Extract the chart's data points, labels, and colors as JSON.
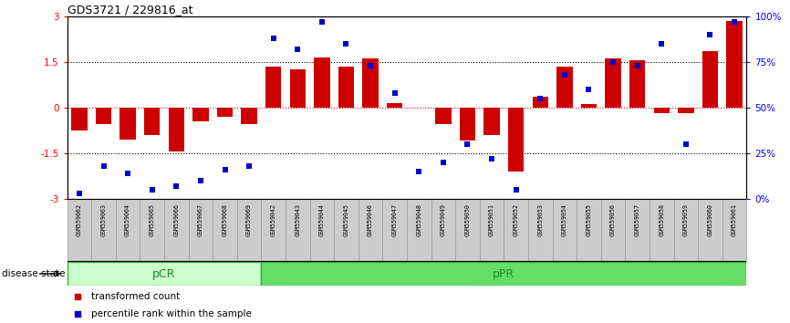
{
  "title": "GDS3721 / 229816_at",
  "samples": [
    "GSM559062",
    "GSM559063",
    "GSM559064",
    "GSM559065",
    "GSM559066",
    "GSM559067",
    "GSM559068",
    "GSM559069",
    "GSM559042",
    "GSM559043",
    "GSM559044",
    "GSM559045",
    "GSM559046",
    "GSM559047",
    "GSM559048",
    "GSM559049",
    "GSM559050",
    "GSM559051",
    "GSM559052",
    "GSM559053",
    "GSM559054",
    "GSM559055",
    "GSM559056",
    "GSM559057",
    "GSM559058",
    "GSM559059",
    "GSM559060",
    "GSM559061"
  ],
  "bar_values": [
    -0.75,
    -0.55,
    -1.05,
    -0.9,
    -1.45,
    -0.45,
    -0.3,
    -0.55,
    1.35,
    1.25,
    1.65,
    1.35,
    1.6,
    0.15,
    0.0,
    -0.55,
    -1.1,
    -0.9,
    -2.1,
    0.35,
    1.35,
    0.1,
    1.6,
    1.55,
    -0.2,
    -0.2,
    1.85,
    2.85
  ],
  "percentile_values": [
    3,
    18,
    14,
    5,
    7,
    10,
    16,
    18,
    88,
    82,
    97,
    85,
    73,
    58,
    15,
    20,
    30,
    22,
    5,
    55,
    68,
    60,
    75,
    73,
    85,
    30,
    90,
    97
  ],
  "bar_color": "#cc0000",
  "dot_color": "#0000cc",
  "ylim_left": [
    -3,
    3
  ],
  "ylim_right": [
    0,
    100
  ],
  "yticks_left": [
    -3,
    -1.5,
    0,
    1.5,
    3
  ],
  "ytick_labels_left": [
    "-3",
    "-1.5",
    "0",
    "1.5",
    "3"
  ],
  "yticks_right": [
    0,
    25,
    50,
    75,
    100
  ],
  "ytick_labels_right": [
    "0%",
    "25%",
    "50%",
    "75%",
    "100%"
  ],
  "pCR_samples": 8,
  "pPR_samples": 20,
  "pCR_color": "#ccffcc",
  "pPR_color": "#66dd66",
  "xlabel_disease": "disease state",
  "legend_bar": "transformed count",
  "legend_dot": "percentile rank within the sample",
  "label_bg": "#cccccc",
  "label_border": "#888888"
}
